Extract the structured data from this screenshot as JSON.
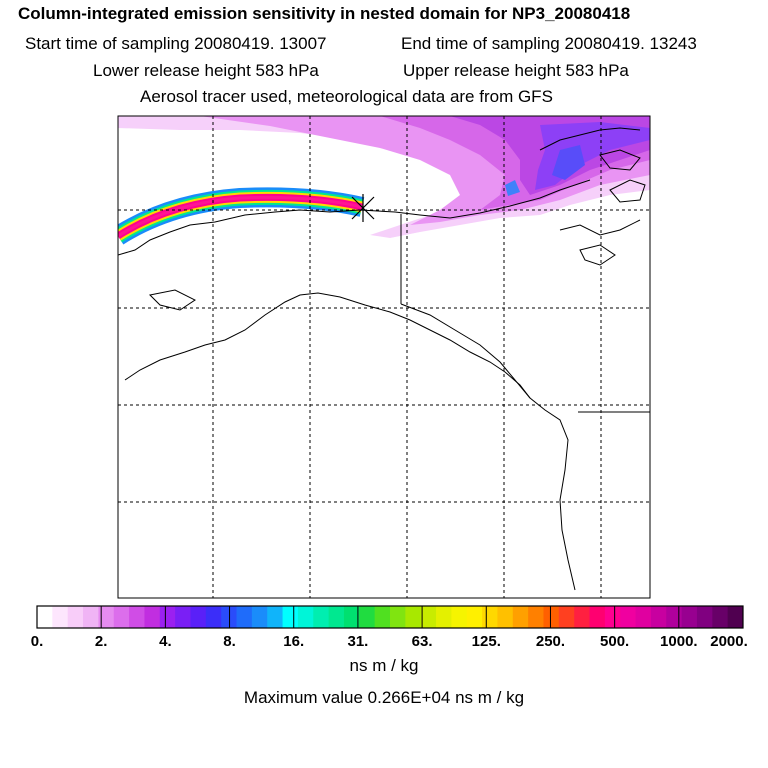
{
  "header": {
    "title": "Column-integrated emission sensitivity in nested domain for NP3_20080418",
    "start_label": "Start time of sampling 20080419. 13007",
    "end_label": "End time of sampling 20080419. 13243",
    "lower_label": "Lower release height  583 hPa",
    "upper_label": "Upper release height  583 hPa",
    "tracer_label": "Aerosol tracer used, meteorological data are from GFS"
  },
  "colorbar": {
    "tick_labels": [
      "0.",
      "2.",
      "4.",
      "8.",
      "16.",
      "31.",
      "63.",
      "125.",
      "250.",
      "500.",
      "1000.",
      "2000."
    ],
    "colors": [
      "#ffffff",
      "#fde6fd",
      "#f8cdf9",
      "#f0b4f5",
      "#e68cf0",
      "#dc6eec",
      "#d04de6",
      "#c12ee0",
      "#9b20f0",
      "#7a1ff5",
      "#5a20f8",
      "#3b2ef9",
      "#2a4cfa",
      "#1f6cfa",
      "#1a8cfa",
      "#10b4fa",
      "#00ffff",
      "#00f5d8",
      "#00eeb0",
      "#00e890",
      "#00e070",
      "#20dc40",
      "#50e020",
      "#80e410",
      "#a8e800",
      "#c8ec00",
      "#e4f000",
      "#f6f400",
      "#fff000",
      "#ffd800",
      "#ffc000",
      "#ffa000",
      "#ff8000",
      "#ff6000",
      "#ff4020",
      "#ff2040",
      "#ff0070",
      "#ff0090",
      "#f000a0",
      "#e000a0",
      "#c800a0",
      "#b0009c",
      "#980090",
      "#800080",
      "#680068",
      "#500050"
    ],
    "units": "ns m / kg",
    "maximum": "Maximum value  0.266E+04 ns m / kg"
  },
  "map": {
    "release_marker": "release-point",
    "plume_colors": [
      "#ff1493",
      "#ff0090",
      "#ffd800",
      "#00e890",
      "#1a8cfa",
      "#c12ee0"
    ],
    "footprint_color": "#cc33ff",
    "grid": "dashed"
  }
}
